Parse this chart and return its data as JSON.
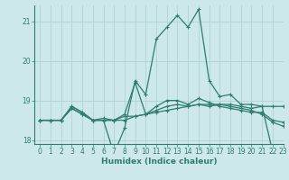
{
  "x": [
    0,
    1,
    2,
    3,
    4,
    5,
    6,
    7,
    8,
    9,
    10,
    11,
    12,
    13,
    14,
    15,
    16,
    17,
    18,
    19,
    20,
    21,
    22,
    23
  ],
  "line1": [
    18.5,
    18.5,
    18.5,
    18.8,
    18.65,
    18.5,
    18.5,
    18.5,
    18.6,
    18.6,
    18.65,
    18.7,
    18.75,
    18.8,
    18.85,
    18.9,
    18.9,
    18.9,
    18.85,
    18.8,
    18.75,
    18.65,
    18.45,
    18.35
  ],
  "line2": [
    18.5,
    18.5,
    18.5,
    18.85,
    18.7,
    18.5,
    18.5,
    18.5,
    18.5,
    18.6,
    18.65,
    18.85,
    19.0,
    19.0,
    18.9,
    19.05,
    18.95,
    18.85,
    18.8,
    18.75,
    18.7,
    18.7,
    18.5,
    18.45
  ],
  "line3": [
    18.5,
    18.5,
    18.5,
    18.85,
    18.7,
    18.5,
    18.55,
    18.5,
    18.65,
    19.45,
    18.65,
    18.75,
    18.85,
    18.9,
    18.85,
    18.9,
    18.85,
    18.9,
    18.9,
    18.85,
    18.8,
    18.85,
    18.85,
    18.85
  ],
  "line4": [
    18.5,
    18.5,
    18.5,
    18.8,
    18.65,
    18.5,
    18.5,
    17.65,
    18.3,
    19.5,
    19.15,
    20.55,
    20.85,
    21.15,
    20.85,
    21.3,
    19.5,
    19.1,
    19.15,
    18.9,
    18.9,
    18.85,
    17.7,
    17.8
  ],
  "color": "#2e7d6e",
  "bg_color": "#cce8e8",
  "grid_color": "#aacfcf",
  "xlabel": "Humidex (Indice chaleur)",
  "ylim": [
    17.9,
    21.4
  ],
  "xlim": [
    -0.5,
    23
  ],
  "yticks": [
    18,
    19,
    20,
    21
  ],
  "xticks": [
    0,
    1,
    2,
    3,
    4,
    5,
    6,
    7,
    8,
    9,
    10,
    11,
    12,
    13,
    14,
    15,
    16,
    17,
    18,
    19,
    20,
    21,
    22,
    23
  ],
  "label_fontsize": 6.5,
  "tick_fontsize": 5.5
}
